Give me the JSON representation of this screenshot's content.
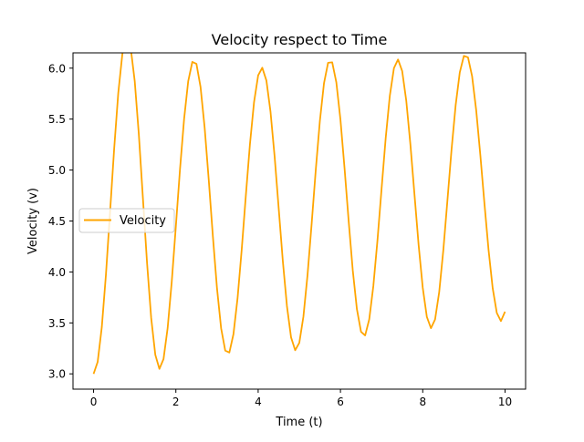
{
  "chart_data": {
    "type": "line",
    "title": "Velocity respect to Time",
    "xlabel": "Time (t)",
    "ylabel": "Velocity (v)",
    "xlim": [
      -0.5,
      10.5
    ],
    "ylim": [
      2.85,
      6.15
    ],
    "x_ticks": [
      "0",
      "2",
      "4",
      "6",
      "8",
      "10"
    ],
    "y_ticks": [
      "3.0",
      "3.5",
      "4.0",
      "4.5",
      "5.0",
      "5.5",
      "6.0"
    ],
    "grid": false,
    "legend_position": "center-left",
    "series": [
      {
        "name": "Velocity",
        "color": "#ffa500",
        "x": [
          0.0,
          0.1,
          0.2,
          0.3,
          0.4,
          0.5,
          0.6,
          0.7,
          0.8,
          0.9,
          1.0,
          1.1,
          1.2,
          1.3,
          1.4,
          1.5,
          1.6,
          1.7,
          1.8,
          1.9,
          2.0,
          2.1,
          2.2,
          2.3,
          2.4,
          2.5,
          2.6,
          2.7,
          2.8,
          2.9,
          3.0,
          3.1,
          3.2,
          3.3,
          3.4,
          3.5,
          3.6,
          3.7,
          3.8,
          3.9,
          4.0,
          4.1,
          4.2,
          4.3,
          4.4,
          4.5,
          4.6,
          4.7,
          4.8,
          4.9,
          5.0,
          5.1,
          5.2,
          5.3,
          5.4,
          5.5,
          5.6,
          5.7,
          5.8,
          5.9,
          6.0,
          6.1,
          6.2,
          6.3,
          6.4,
          6.5,
          6.6,
          6.7,
          6.8,
          6.9,
          7.0,
          7.1,
          7.2,
          7.3,
          7.4,
          7.5,
          7.6,
          7.7,
          7.8,
          7.9,
          8.0,
          8.1,
          8.2,
          8.3,
          8.4,
          8.5,
          8.6,
          8.7,
          8.8,
          8.9,
          9.0,
          9.1,
          9.2,
          9.3,
          9.4,
          9.5,
          9.6,
          9.7,
          9.8,
          9.9,
          10.0
        ],
        "values": [
          3.0,
          3.118,
          3.458,
          3.971,
          4.582,
          5.207,
          5.755,
          6.14,
          6.301,
          6.207,
          5.873,
          5.349,
          4.72,
          4.087,
          3.549,
          3.188,
          3.049,
          3.145,
          3.449,
          3.905,
          4.449,
          5.005,
          5.501,
          5.871,
          6.061,
          6.042,
          5.815,
          5.414,
          4.899,
          4.347,
          3.838,
          3.447,
          3.228,
          3.209,
          3.39,
          3.744,
          4.218,
          4.745,
          5.252,
          5.666,
          5.929,
          6.004,
          5.879,
          5.573,
          5.133,
          4.62,
          4.106,
          3.664,
          3.358,
          3.232,
          3.304,
          3.562,
          3.97,
          4.472,
          5.0,
          5.482,
          5.851,
          6.053,
          6.057,
          5.861,
          5.495,
          5.016,
          4.498,
          4.013,
          3.635,
          3.413,
          3.377,
          3.535,
          3.863,
          4.311,
          4.818,
          5.314,
          5.729,
          6.0,
          6.085,
          5.972,
          5.679,
          5.251,
          4.757,
          4.265,
          3.846,
          3.559,
          3.448,
          3.534,
          3.802,
          4.212,
          4.702,
          5.2,
          5.637,
          5.957,
          6.12,
          6.106,
          5.92,
          5.584,
          5.147,
          4.669,
          4.214,
          3.841,
          3.598,
          3.518,
          3.61
        ]
      }
    ]
  }
}
